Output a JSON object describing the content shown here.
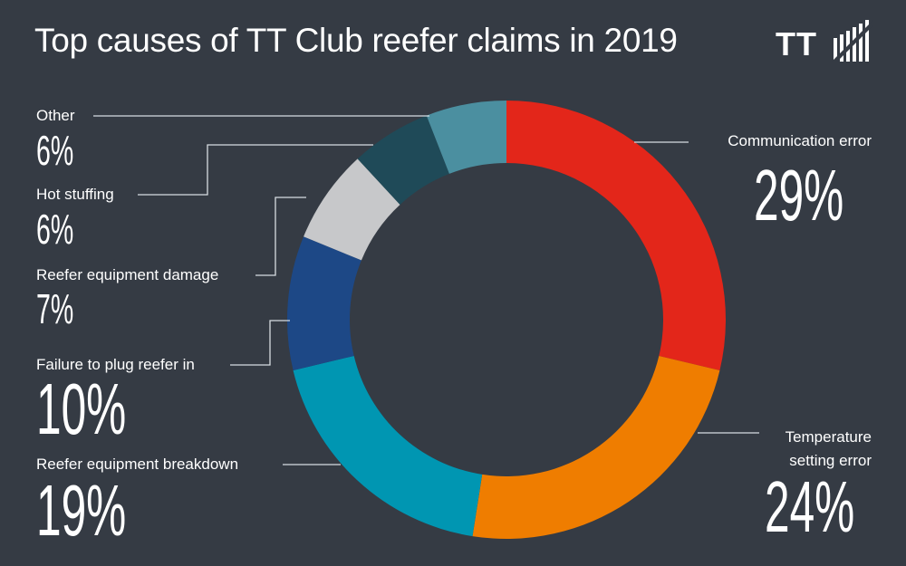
{
  "title": "Top causes of TT Club reefer claims in 2019",
  "logo": {
    "text": "TT"
  },
  "colors": {
    "background": "#353b44",
    "leader": "#d8dde2"
  },
  "chart_data": {
    "type": "pie",
    "subtype": "donut",
    "title": "Top causes of TT Club reefer claims in 2019",
    "slices": [
      {
        "label": "Communication error",
        "value": 29,
        "display": "29%",
        "color": "#e3261a"
      },
      {
        "label": "Temperature setting error",
        "value": 24,
        "display": "24%",
        "color": "#ef7d00"
      },
      {
        "label": "Reefer equipment breakdown",
        "value": 19,
        "display": "19%",
        "color": "#0096b2"
      },
      {
        "label": "Failure to plug reefer in",
        "value": 10,
        "display": "10%",
        "color": "#1d4886"
      },
      {
        "label": "Reefer equipment damage",
        "value": 7,
        "display": "7%",
        "color": "#c7c8ca"
      },
      {
        "label": "Hot stuffing",
        "value": 6,
        "display": "6%",
        "color": "#1f4a58"
      },
      {
        "label": "Other",
        "value": 6,
        "display": "6%",
        "color": "#4b8fa0"
      }
    ],
    "temperature_label_lines": [
      "Temperature",
      "setting error"
    ]
  }
}
